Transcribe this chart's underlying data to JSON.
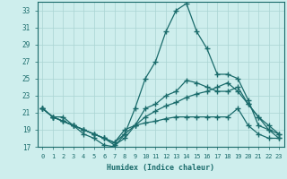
{
  "xlabel": "Humidex (Indice chaleur)",
  "bg_color": "#ceeeed",
  "grid_color": "#aad4d2",
  "line_color": "#1a6b6b",
  "ylim": [
    17,
    34
  ],
  "xlim": [
    -0.5,
    23.5
  ],
  "yticks": [
    17,
    19,
    21,
    23,
    25,
    27,
    29,
    31,
    33
  ],
  "xticks": [
    0,
    1,
    2,
    3,
    4,
    5,
    6,
    7,
    8,
    9,
    10,
    11,
    12,
    13,
    14,
    15,
    16,
    17,
    18,
    19,
    20,
    21,
    22,
    23
  ],
  "series": [
    [
      21.5,
      20.5,
      20.5,
      19.5,
      18.5,
      18.0,
      17.2,
      17.0,
      18.5,
      21.5,
      25.0,
      27.0,
      30.5,
      33.0,
      33.8,
      30.5,
      28.5,
      25.5,
      25.5,
      25.0,
      22.5,
      19.5,
      19.0,
      18.5
    ],
    [
      21.5,
      20.5,
      20.0,
      19.5,
      19.0,
      18.5,
      18.0,
      17.2,
      18.0,
      19.5,
      21.5,
      22.0,
      23.0,
      23.5,
      24.8,
      24.5,
      24.0,
      23.5,
      23.5,
      24.0,
      22.0,
      20.5,
      19.5,
      18.5
    ],
    [
      21.5,
      20.5,
      20.0,
      19.5,
      19.0,
      18.5,
      18.0,
      17.5,
      18.5,
      19.5,
      20.5,
      21.2,
      21.8,
      22.2,
      22.8,
      23.2,
      23.5,
      24.0,
      24.5,
      23.5,
      22.0,
      20.5,
      19.0,
      18.0
    ],
    [
      21.5,
      20.5,
      20.0,
      19.5,
      19.0,
      18.5,
      18.0,
      17.5,
      19.0,
      19.5,
      19.8,
      20.0,
      20.3,
      20.5,
      20.5,
      20.5,
      20.5,
      20.5,
      20.5,
      21.5,
      19.5,
      18.5,
      18.0,
      18.0
    ]
  ],
  "marker": "+",
  "markersize": 4,
  "linewidth": 0.9
}
